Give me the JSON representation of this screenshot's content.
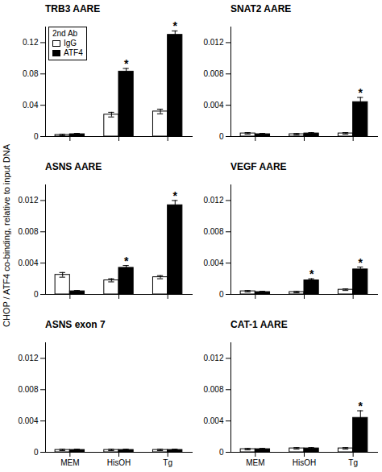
{
  "ylabel": "CHOP / ATF4 co-binding, relative to input DNA",
  "chart_data": [
    {
      "type": "bar",
      "title": "TRB3 AARE",
      "categories": [
        "MEM",
        "HisOH",
        "Tg"
      ],
      "series": [
        {
          "name": "IgG",
          "color": "white",
          "values": [
            0.002,
            0.028,
            0.032
          ],
          "errors": [
            0.001,
            0.003,
            0.003
          ]
        },
        {
          "name": "ATF4",
          "color": "black",
          "values": [
            0.003,
            0.083,
            0.13
          ],
          "errors": [
            0.001,
            0.004,
            0.005
          ]
        }
      ],
      "ylim": [
        0,
        0.14
      ],
      "yticks": [
        0,
        0.04,
        0.08,
        0.12
      ],
      "annotations": [
        {
          "text": "*",
          "category": "HisOH",
          "series": "ATF4"
        },
        {
          "text": "*",
          "category": "Tg",
          "series": "ATF4"
        }
      ],
      "tick_labels": "y",
      "legend": "upper left",
      "legend_title": "2nd Ab"
    },
    {
      "type": "bar",
      "title": "SNAT2 AARE",
      "categories": [
        "MEM",
        "HisOH",
        "Tg"
      ],
      "series": [
        {
          "name": "IgG",
          "color": "white",
          "values": [
            0.0004,
            0.0003,
            0.0004
          ],
          "errors": [
            0.0001,
            0.0001,
            0.0001
          ]
        },
        {
          "name": "ATF4",
          "color": "black",
          "values": [
            0.0003,
            0.0004,
            0.0044
          ],
          "errors": [
            0.0001,
            0.0001,
            0.0006
          ]
        }
      ],
      "ylim": [
        0,
        0.014
      ],
      "yticks": [
        0,
        0.004,
        0.008,
        0.012
      ],
      "annotations": [
        {
          "text": "*",
          "category": "Tg",
          "series": "ATF4"
        }
      ],
      "tick_labels": "y"
    },
    {
      "type": "bar",
      "title": "ASNS AARE",
      "categories": [
        "MEM",
        "HisOH",
        "Tg"
      ],
      "series": [
        {
          "name": "IgG",
          "color": "white",
          "values": [
            0.0025,
            0.0018,
            0.0022
          ],
          "errors": [
            0.0003,
            0.0002,
            0.0002
          ]
        },
        {
          "name": "ATF4",
          "color": "black",
          "values": [
            0.0004,
            0.0034,
            0.0114
          ],
          "errors": [
            0.0001,
            0.0003,
            0.0006
          ]
        }
      ],
      "ylim": [
        0,
        0.014
      ],
      "yticks": [
        0,
        0.004,
        0.008,
        0.012
      ],
      "annotations": [
        {
          "text": "*",
          "category": "HisOH",
          "series": "ATF4"
        },
        {
          "text": "*",
          "category": "Tg",
          "series": "ATF4"
        }
      ],
      "tick_labels": "y"
    },
    {
      "type": "bar",
      "title": "VEGF AARE",
      "categories": [
        "MEM",
        "HisOH",
        "Tg"
      ],
      "series": [
        {
          "name": "IgG",
          "color": "white",
          "values": [
            0.0004,
            0.0003,
            0.0006
          ],
          "errors": [
            0.0001,
            0.0001,
            0.0001
          ]
        },
        {
          "name": "ATF4",
          "color": "black",
          "values": [
            0.0003,
            0.0018,
            0.0032
          ],
          "errors": [
            0.0001,
            0.0002,
            0.0003
          ]
        }
      ],
      "ylim": [
        0,
        0.014
      ],
      "yticks": [
        0,
        0.004,
        0.008,
        0.012
      ],
      "annotations": [
        {
          "text": "*",
          "category": "HisOH",
          "series": "ATF4"
        },
        {
          "text": "*",
          "category": "Tg",
          "series": "ATF4"
        }
      ],
      "tick_labels": "y"
    },
    {
      "type": "bar",
      "title": "ASNS exon 7",
      "categories": [
        "MEM",
        "HisOH",
        "Tg"
      ],
      "series": [
        {
          "name": "IgG",
          "color": "white",
          "values": [
            0.0003,
            0.0003,
            0.0003
          ],
          "errors": [
            0.0001,
            0.0001,
            0.0001
          ]
        },
        {
          "name": "ATF4",
          "color": "black",
          "values": [
            0.0003,
            0.0003,
            0.0003
          ],
          "errors": [
            0.0001,
            0.0001,
            0.0001
          ]
        }
      ],
      "ylim": [
        0,
        0.014
      ],
      "yticks": [
        0,
        0.004,
        0.008,
        0.012
      ]
    },
    {
      "type": "bar",
      "title": "CAT-1 AARE",
      "categories": [
        "MEM",
        "HisOH",
        "Tg"
      ],
      "series": [
        {
          "name": "IgG",
          "color": "white",
          "values": [
            0.0004,
            0.0005,
            0.0005
          ],
          "errors": [
            0.0001,
            0.0001,
            0.0001
          ]
        },
        {
          "name": "ATF4",
          "color": "black",
          "values": [
            0.0004,
            0.0005,
            0.0044
          ],
          "errors": [
            0.0001,
            0.0001,
            0.0009
          ]
        }
      ],
      "ylim": [
        0,
        0.014
      ],
      "yticks": [
        0,
        0.004,
        0.008,
        0.012
      ],
      "annotations": [
        {
          "text": "*",
          "category": "Tg",
          "series": "ATF4"
        }
      ]
    }
  ]
}
